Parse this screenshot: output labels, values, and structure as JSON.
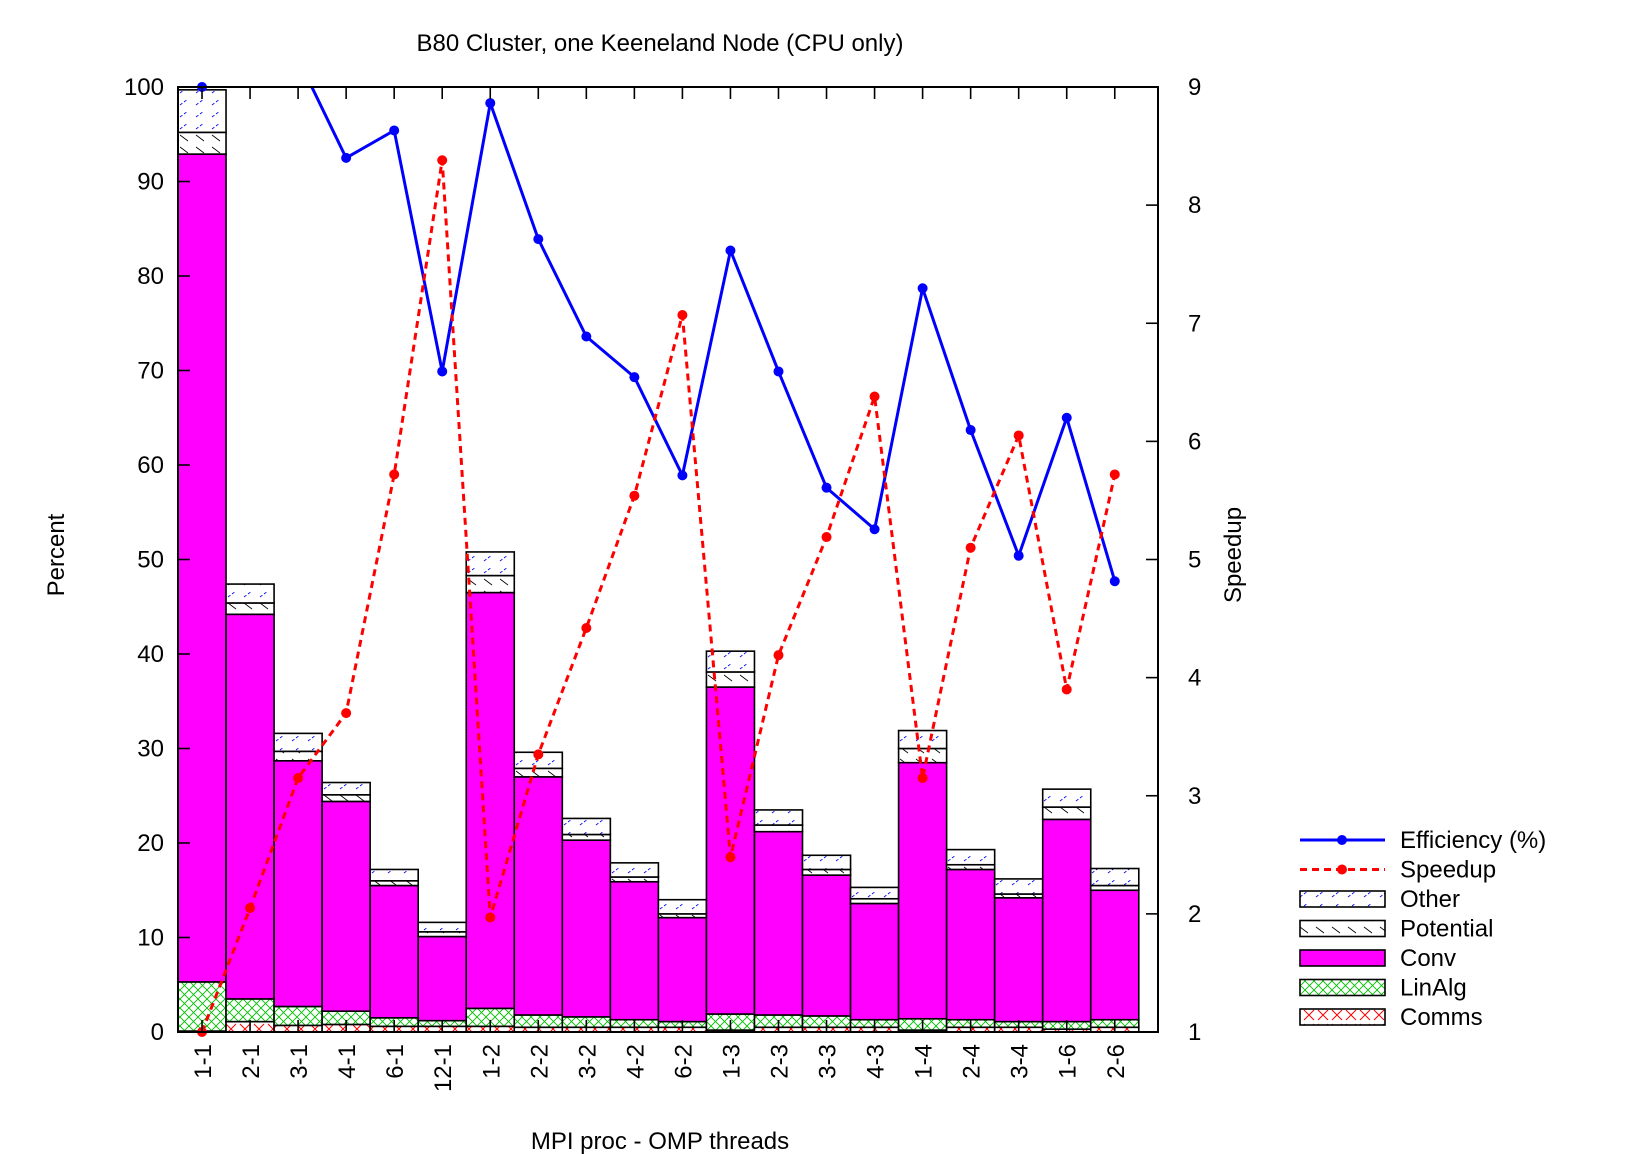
{
  "chart_data": {
    "type": "bar",
    "title": "B80 Cluster, one Keeneland Node (CPU only)",
    "xlabel": "MPI proc - OMP threads",
    "ylabel": "Percent",
    "y2label": "Speedup",
    "ylim": [
      0,
      100
    ],
    "y2lim": [
      1,
      9
    ],
    "yticks": [
      0,
      10,
      20,
      30,
      40,
      50,
      60,
      70,
      80,
      90,
      100
    ],
    "y2ticks": [
      1,
      2,
      3,
      4,
      5,
      6,
      7,
      8,
      9
    ],
    "categories": [
      "1-1",
      "2-1",
      "3-1",
      "4-1",
      "6-1",
      "12-1",
      "1-2",
      "2-2",
      "3-2",
      "4-2",
      "6-2",
      "1-3",
      "2-3",
      "3-3",
      "4-3",
      "1-4",
      "2-4",
      "3-4",
      "1-6",
      "2-6"
    ],
    "legend_position": "right",
    "stacked_series": [
      {
        "name": "Comms",
        "color": "#ff0000",
        "pattern": "cross",
        "values": [
          0.1,
          1.1,
          0.7,
          0.8,
          0.6,
          0.6,
          0.6,
          0.5,
          0.5,
          0.5,
          0.5,
          0.2,
          0.5,
          0.5,
          0.5,
          0.2,
          0.5,
          0.5,
          0.3,
          0.5
        ]
      },
      {
        "name": "LinAlg",
        "color": "#00c000",
        "pattern": "crosshatch",
        "values": [
          5.2,
          2.4,
          2.0,
          1.4,
          0.9,
          0.6,
          1.9,
          1.3,
          1.1,
          0.8,
          0.6,
          1.7,
          1.3,
          1.2,
          0.8,
          1.2,
          0.8,
          0.6,
          0.8,
          0.8
        ]
      },
      {
        "name": "Conv",
        "color": "#ff00ff",
        "pattern": "solid",
        "values": [
          87.6,
          40.7,
          26.0,
          22.2,
          14.0,
          8.9,
          44.0,
          25.2,
          18.7,
          14.6,
          11.0,
          34.6,
          19.4,
          14.9,
          12.3,
          27.1,
          15.9,
          13.1,
          21.4,
          13.7
        ]
      },
      {
        "name": "Potential",
        "color": "#000000",
        "pattern": "backslash",
        "values": [
          2.3,
          1.2,
          1.0,
          0.7,
          0.5,
          0.5,
          1.8,
          0.9,
          0.6,
          0.5,
          0.4,
          1.6,
          0.7,
          0.6,
          0.5,
          1.5,
          0.5,
          0.4,
          1.3,
          0.5
        ]
      },
      {
        "name": "Other",
        "color": "#0000ff",
        "pattern": "slash",
        "values": [
          4.5,
          2.0,
          1.9,
          1.3,
          1.2,
          1.0,
          2.5,
          1.7,
          1.7,
          1.5,
          1.5,
          2.2,
          1.6,
          1.5,
          1.2,
          1.9,
          1.6,
          1.6,
          1.9,
          1.8
        ]
      }
    ],
    "line_series": [
      {
        "name": "Efficiency (%)",
        "color": "#0000ff",
        "style": "solid",
        "axis": "left",
        "values": [
          100,
          102,
          103,
          92.5,
          95.4,
          69.9,
          98.3,
          83.9,
          73.6,
          69.3,
          58.9,
          82.7,
          69.9,
          57.6,
          53.2,
          78.7,
          63.7,
          50.4,
          65.0,
          47.7
        ]
      },
      {
        "name": "Speedup",
        "color": "#ff0000",
        "style": "dashed",
        "axis": "right",
        "values": [
          1.0,
          2.05,
          3.15,
          3.7,
          5.72,
          8.38,
          1.97,
          3.35,
          4.42,
          5.54,
          7.07,
          2.48,
          4.19,
          5.19,
          6.38,
          3.15,
          5.1,
          6.05,
          3.9,
          5.72
        ]
      }
    ],
    "legend": [
      "Efficiency (%)",
      "Speedup",
      "Other",
      "Potential",
      "Conv",
      "LinAlg",
      "Comms"
    ]
  }
}
